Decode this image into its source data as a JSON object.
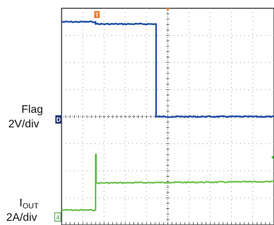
{
  "chart_data": {
    "type": "line",
    "x_divisions": 10,
    "y_divisions": 8,
    "trigger_marker": "T",
    "series": [
      {
        "name": "Flag",
        "scale": "2V/div",
        "channel_marker": "D",
        "color": "#1f4fa8",
        "x": [
          0,
          1.6,
          1.6,
          4.45,
          4.45,
          10
        ],
        "y": [
          7.5,
          7.5,
          7.42,
          7.42,
          4.0,
          4.0
        ]
      },
      {
        "name": "IOUT",
        "name_main": "I",
        "name_sub": "OUT",
        "scale": "2A/div",
        "channel_marker": "4",
        "color": "#6cc04a",
        "x": [
          0,
          1.6,
          1.6,
          1.63,
          1.63,
          10
        ],
        "y": [
          0.55,
          0.55,
          2.6,
          2.6,
          1.55,
          1.6
        ]
      }
    ]
  }
}
